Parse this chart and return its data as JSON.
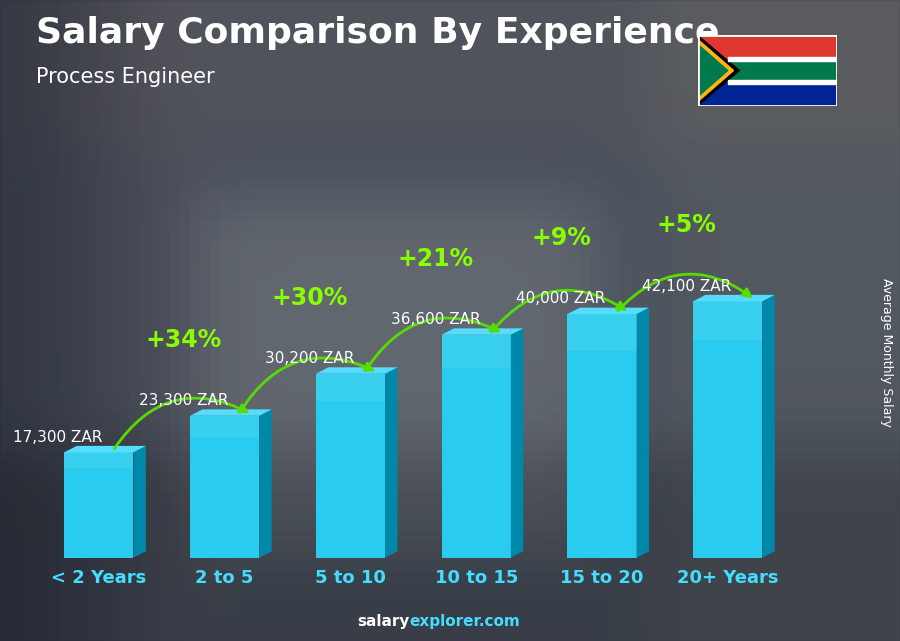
{
  "title": "Salary Comparison By Experience",
  "subtitle": "Process Engineer",
  "ylabel": "Average Monthly Salary",
  "watermark_plain": "salary",
  "watermark_bold": "explorer.com",
  "categories": [
    "< 2 Years",
    "2 to 5",
    "5 to 10",
    "10 to 15",
    "15 to 20",
    "20+ Years"
  ],
  "values": [
    17300,
    23300,
    30200,
    36600,
    40000,
    42100
  ],
  "labels": [
    "17,300 ZAR",
    "23,300 ZAR",
    "30,200 ZAR",
    "36,600 ZAR",
    "40,000 ZAR",
    "42,100 ZAR"
  ],
  "increases": [
    null,
    "+34%",
    "+30%",
    "+21%",
    "+9%",
    "+5%"
  ],
  "bar_front_color": "#29ccee",
  "bar_side_color": "#0088aa",
  "bar_top_color": "#55ddff",
  "increase_color": "#88ff00",
  "arrow_color": "#55dd00",
  "title_color": "#ffffff",
  "subtitle_color": "#ffffff",
  "label_color": "#ffffff",
  "category_color": "#44ddff",
  "bg_color": "#3a3a4a",
  "title_fontsize": 26,
  "subtitle_fontsize": 15,
  "label_fontsize": 11,
  "increase_fontsize": 17,
  "category_fontsize": 13,
  "ylabel_fontsize": 9,
  "plot_max_scale": 1.55
}
